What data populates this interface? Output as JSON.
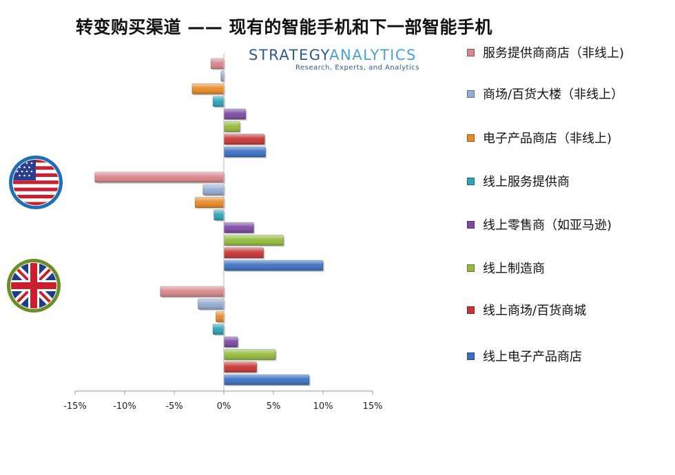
{
  "title": "转变购买渠道 —— 现有的智能手机和下一部智能手机",
  "logo": {
    "part1": "STRATEGY",
    "part2": "ANALYTICS",
    "tagline": "Research, Experts, and Analytics"
  },
  "icons": [
    {
      "name": "us-flag-icon",
      "ring": "#1f6fb6"
    },
    {
      "name": "uk-flag-icon",
      "ring": "#6b8e23"
    }
  ],
  "chart_data": {
    "type": "bar",
    "orientation": "horizontal",
    "title": "",
    "xlabel": "",
    "ylabel": "",
    "xlim": [
      -15,
      15
    ],
    "x_ticks": [
      "-15%",
      "-10%",
      "-5%",
      "0%",
      "5%",
      "10%",
      "15%"
    ],
    "tick_values": [
      -15,
      -10,
      -5,
      0,
      5,
      10,
      15
    ],
    "unit": "%",
    "grid": false,
    "legend_position": "right",
    "categories": [
      "",
      "美国",
      "英国"
    ],
    "series": [
      {
        "name": "服务提供商商店（非线上)",
        "color": "#d9868a",
        "values": [
          -1.3,
          -13,
          -6.4
        ]
      },
      {
        "name": "商场/百货大楼（非线上）",
        "color": "#95acd4",
        "values": [
          -0.3,
          -2.1,
          -2.6
        ]
      },
      {
        "name": "电子产品商店（非线上)",
        "color": "#e98a25",
        "values": [
          -3.2,
          -2.9,
          -0.8
        ]
      },
      {
        "name": "线上服务提供商",
        "color": "#2ba3b8",
        "values": [
          -1.1,
          -1.0,
          -1.1
        ]
      },
      {
        "name": "线上零售商（如亚马逊)",
        "color": "#7b4aa4",
        "values": [
          2.2,
          3.0,
          1.4
        ]
      },
      {
        "name": "线上制造商",
        "color": "#93bc3c",
        "values": [
          1.6,
          6.0,
          5.2
        ]
      },
      {
        "name": "线上商场/百货商城",
        "color": "#c93535",
        "values": [
          4.1,
          4.0,
          3.3
        ]
      },
      {
        "name": "线上电子产品商店",
        "color": "#3a70c3",
        "values": [
          4.2,
          10.0,
          8.6
        ]
      }
    ]
  }
}
